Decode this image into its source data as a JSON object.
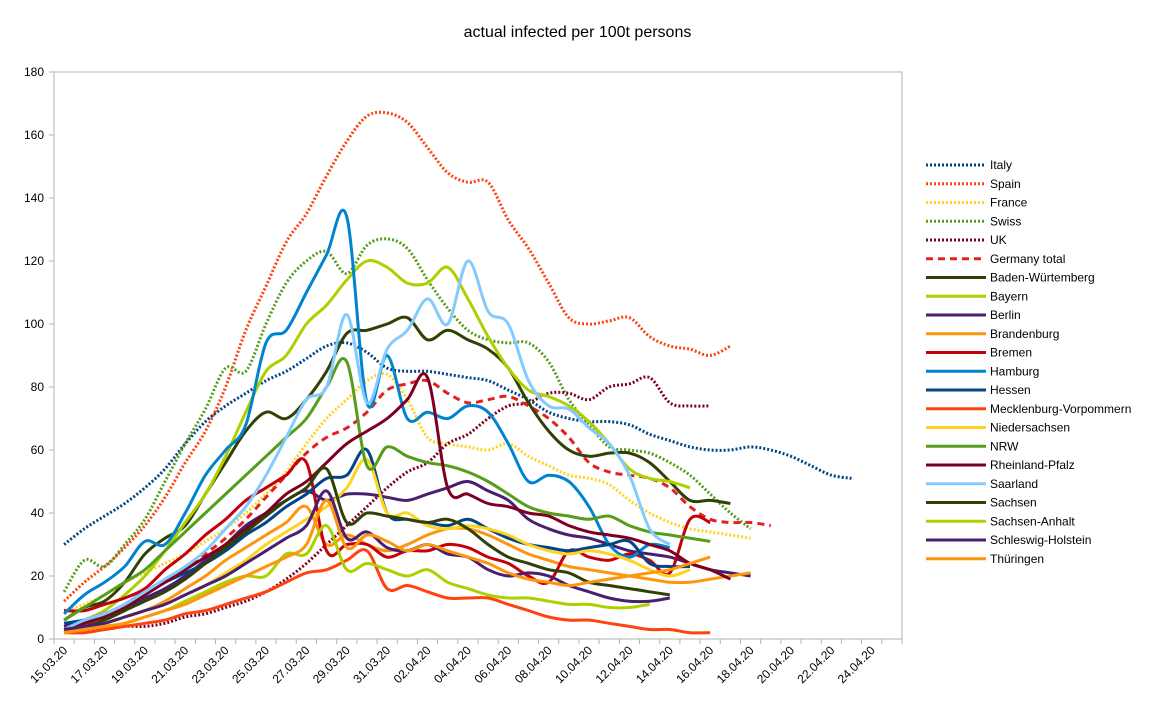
{
  "chart_data": {
    "type": "line",
    "title": "actual infected per 100t persons",
    "xlabel": "",
    "ylabel": "",
    "ylim": [
      0,
      180
    ],
    "yticks": [
      0,
      20,
      40,
      60,
      80,
      100,
      120,
      140,
      160,
      180
    ],
    "grid": false,
    "legend_position": "right",
    "x": [
      "15.03.20",
      "16.03.20",
      "17.03.20",
      "18.03.20",
      "19.03.20",
      "20.03.20",
      "21.03.20",
      "22.03.20",
      "23.03.20",
      "24.03.20",
      "25.03.20",
      "26.03.20",
      "27.03.20",
      "28.03.20",
      "29.03.20",
      "30.03.20",
      "31.03.20",
      "01.04.20",
      "02.04.20",
      "03.04.20",
      "04.04.20",
      "05.04.20",
      "06.04.20",
      "07.04.20",
      "08.04.20",
      "09.04.20",
      "10.04.20",
      "11.04.20",
      "12.04.20",
      "13.04.20",
      "14.04.20",
      "15.04.20",
      "16.04.20",
      "17.04.20",
      "18.04.20",
      "19.04.20",
      "20.04.20",
      "21.04.20",
      "22.04.20",
      "23.04.20",
      "24.04.20",
      "25.04.20"
    ],
    "xtick_labels": [
      "15.03.20",
      "17.03.20",
      "19.03.20",
      "21.03.20",
      "23.03.20",
      "25.03.20",
      "27.03.20",
      "29.03.20",
      "31.03.20",
      "02.04.20",
      "04.04.20",
      "06.04.20",
      "08.04.20",
      "10.04.20",
      "12.04.20",
      "14.04.20",
      "16.04.20",
      "18.04.20",
      "20.04.20",
      "22.04.20",
      "24.04.20"
    ],
    "series": [
      {
        "name": "Italy",
        "color": "#004586",
        "dash": "dot",
        "values": [
          30,
          35,
          39,
          43,
          48,
          54,
          62,
          69,
          74,
          78,
          82,
          85,
          89,
          93,
          94,
          91,
          86,
          85,
          85,
          84,
          83,
          82,
          79,
          76,
          72,
          70,
          69,
          69,
          68,
          65,
          63,
          61,
          60,
          60,
          61,
          60,
          58,
          55,
          52,
          51,
          null,
          null
        ]
      },
      {
        "name": "Spain",
        "color": "#ff420e",
        "dash": "dot",
        "values": [
          12,
          18,
          23,
          29,
          36,
          45,
          56,
          66,
          80,
          98,
          112,
          126,
          135,
          147,
          158,
          166,
          167,
          164,
          156,
          148,
          145,
          145,
          133,
          124,
          113,
          102,
          100,
          101,
          102,
          96,
          93,
          92,
          90,
          93,
          null,
          null,
          null,
          null,
          null,
          null,
          null,
          null
        ]
      },
      {
        "name": "France",
        "color": "#ffd320",
        "dash": "dot",
        "values": [
          9,
          11,
          14,
          18,
          21,
          24,
          27,
          31,
          35,
          40,
          46,
          53,
          62,
          70,
          76,
          82,
          84,
          76,
          64,
          62,
          61,
          60,
          62,
          58,
          55,
          52,
          51,
          49,
          44,
          40,
          37,
          35,
          34,
          33,
          32,
          null,
          null,
          null,
          null,
          null,
          null,
          null
        ]
      },
      {
        "name": "Swiss",
        "color": "#579d1c",
        "dash": "dot",
        "values": [
          15,
          25,
          23,
          30,
          38,
          50,
          62,
          73,
          86,
          85,
          100,
          113,
          120,
          123,
          116,
          125,
          127,
          124,
          114,
          105,
          98,
          95,
          94,
          94,
          88,
          76,
          68,
          61,
          60,
          59,
          56,
          52,
          46,
          40,
          35,
          null,
          null,
          null,
          null,
          null,
          null,
          null
        ]
      },
      {
        "name": "UK",
        "color": "#7e0021",
        "dash": "dot",
        "values": [
          2,
          3,
          3,
          4,
          4,
          5,
          7,
          8,
          10,
          12,
          15,
          19,
          24,
          30,
          36,
          42,
          48,
          53,
          56,
          62,
          65,
          70,
          74,
          75,
          78,
          78,
          76,
          80,
          81,
          83,
          75,
          74,
          74,
          null,
          null,
          null,
          null,
          null,
          null,
          null,
          null,
          null
        ]
      },
      {
        "name": "Germany total",
        "color": "#e32020",
        "dash": "dash",
        "values": [
          4,
          5,
          7,
          10,
          14,
          18,
          22,
          27,
          32,
          38,
          45,
          52,
          59,
          64,
          67,
          72,
          79,
          81,
          82,
          78,
          75,
          76,
          77,
          74,
          70,
          64,
          56,
          53,
          52,
          51,
          48,
          42,
          38,
          37,
          37,
          36,
          null,
          null,
          null,
          null,
          null,
          null
        ]
      },
      {
        "name": "Baden-Würtemberg",
        "color": "#314004",
        "dash": "solid",
        "values": [
          6,
          10,
          12,
          18,
          27,
          32,
          36,
          46,
          56,
          66,
          72,
          70,
          76,
          85,
          97,
          98,
          100,
          102,
          95,
          98,
          95,
          92,
          86,
          75,
          66,
          60,
          58,
          59,
          59,
          56,
          50,
          44,
          44,
          43,
          null,
          null,
          null,
          null,
          null,
          null,
          null,
          null
        ]
      },
      {
        "name": "Bayern",
        "color": "#aecf00",
        "dash": "solid",
        "values": [
          3,
          6,
          9,
          14,
          20,
          28,
          37,
          46,
          58,
          72,
          85,
          90,
          100,
          106,
          114,
          120,
          118,
          113,
          113,
          118,
          108,
          96,
          86,
          79,
          77,
          74,
          69,
          62,
          54,
          51,
          50,
          48,
          null,
          null,
          null,
          null,
          null,
          null,
          null,
          null,
          null,
          null
        ]
      },
      {
        "name": "Berlin",
        "color": "#4b1f6f",
        "dash": "solid",
        "values": [
          4,
          6,
          8,
          10,
          13,
          16,
          20,
          25,
          30,
          36,
          40,
          44,
          47,
          44,
          46,
          46,
          45,
          44,
          46,
          48,
          50,
          47,
          44,
          38,
          35,
          33,
          32,
          30,
          28,
          27,
          26,
          24,
          22,
          21,
          20,
          null,
          null,
          null,
          null,
          null,
          null,
          null
        ]
      },
      {
        "name": "Brandenburg",
        "color": "#ff950e",
        "dash": "solid",
        "values": [
          2,
          3,
          5,
          7,
          9,
          12,
          16,
          20,
          25,
          29,
          33,
          37,
          42,
          30,
          33,
          30,
          28,
          30,
          33,
          35,
          35,
          33,
          30,
          27,
          25,
          23,
          22,
          21,
          20,
          19,
          18,
          18,
          19,
          20,
          21,
          null,
          null,
          null,
          null,
          null,
          null,
          null
        ]
      },
      {
        "name": "Bremen",
        "color": "#c5000b",
        "dash": "solid",
        "values": [
          9,
          9,
          11,
          13,
          16,
          22,
          27,
          33,
          38,
          44,
          48,
          52,
          56,
          28,
          30,
          30,
          26,
          28,
          28,
          30,
          29,
          26,
          24,
          20,
          18,
          28,
          26,
          25,
          27,
          25,
          21,
          38,
          37,
          null,
          null,
          null,
          null,
          null,
          null,
          null,
          null,
          null
        ]
      },
      {
        "name": "Hamburg",
        "color": "#0084d1",
        "dash": "solid",
        "values": [
          8,
          14,
          18,
          23,
          31,
          30,
          40,
          52,
          60,
          68,
          94,
          98,
          110,
          122,
          134,
          75,
          90,
          70,
          72,
          70,
          74,
          72,
          62,
          50,
          52,
          50,
          42,
          30,
          26,
          30,
          29,
          null,
          null,
          null,
          null,
          null,
          null,
          null,
          null,
          null,
          null,
          null
        ]
      },
      {
        "name": "Hessen",
        "color": "#004586",
        "dash": "solid",
        "values": [
          5,
          6,
          8,
          11,
          15,
          18,
          21,
          24,
          28,
          33,
          37,
          42,
          46,
          51,
          52,
          60,
          40,
          38,
          37,
          36,
          38,
          35,
          32,
          30,
          29,
          28,
          29,
          30,
          31,
          24,
          23,
          23,
          null,
          null,
          null,
          null,
          null,
          null,
          null,
          null,
          null,
          null
        ]
      },
      {
        "name": "Mecklenburg-Vorpommern",
        "color": "#ff420e",
        "dash": "solid",
        "values": [
          2,
          2,
          3,
          4,
          5,
          6,
          8,
          9,
          11,
          13,
          15,
          18,
          21,
          22,
          25,
          28,
          16,
          17,
          15,
          13,
          13,
          13,
          11,
          9,
          7,
          6,
          6,
          5,
          4,
          3,
          3,
          2,
          2,
          null,
          null,
          null,
          null,
          null,
          null,
          null,
          null,
          null
        ]
      },
      {
        "name": "Niedersachsen",
        "color": "#ffd320",
        "dash": "solid",
        "values": [
          3,
          4,
          5,
          7,
          9,
          11,
          14,
          17,
          21,
          25,
          30,
          34,
          38,
          42,
          48,
          57,
          40,
          40,
          36,
          35,
          36,
          35,
          33,
          30,
          28,
          27,
          28,
          27,
          25,
          22,
          20,
          22,
          null,
          null,
          null,
          null,
          null,
          null,
          null,
          null,
          null,
          null
        ]
      },
      {
        "name": "NRW",
        "color": "#579d1c",
        "dash": "solid",
        "values": [
          6,
          10,
          14,
          18,
          22,
          28,
          34,
          40,
          46,
          52,
          58,
          64,
          70,
          80,
          88,
          55,
          61,
          58,
          56,
          55,
          53,
          50,
          46,
          42,
          40,
          39,
          38,
          39,
          36,
          34,
          33,
          32,
          31,
          null,
          null,
          null,
          null,
          null,
          null,
          null,
          null,
          null
        ]
      },
      {
        "name": "Rheinland-Pfalz",
        "color": "#7e0021",
        "dash": "solid",
        "values": [
          3,
          5,
          7,
          10,
          14,
          18,
          22,
          26,
          30,
          35,
          40,
          46,
          50,
          56,
          62,
          66,
          70,
          76,
          83,
          48,
          46,
          43,
          42,
          40,
          39,
          36,
          34,
          33,
          32,
          30,
          28,
          24,
          22,
          19,
          null,
          null,
          null,
          null,
          null,
          null,
          null,
          null
        ]
      },
      {
        "name": "Saarland",
        "color": "#83caff",
        "dash": "solid",
        "values": [
          3,
          6,
          8,
          11,
          15,
          19,
          23,
          28,
          35,
          42,
          52,
          64,
          76,
          80,
          103,
          75,
          92,
          98,
          108,
          100,
          120,
          104,
          100,
          82,
          74,
          73,
          67,
          62,
          52,
          35,
          30,
          null,
          null,
          null,
          null,
          null,
          null,
          null,
          null,
          null,
          null,
          null
        ]
      },
      {
        "name": "Sachsen",
        "color": "#314004",
        "dash": "solid",
        "values": [
          3,
          4,
          6,
          9,
          12,
          15,
          19,
          24,
          29,
          34,
          39,
          44,
          48,
          54,
          37,
          40,
          39,
          38,
          37,
          38,
          35,
          30,
          26,
          24,
          22,
          21,
          18,
          17,
          16,
          15,
          14,
          null,
          null,
          null,
          null,
          null,
          null,
          null,
          null,
          null,
          null,
          null
        ]
      },
      {
        "name": "Sachsen-Anhalt",
        "color": "#aecf00",
        "dash": "solid",
        "values": [
          2,
          3,
          4,
          5,
          7,
          9,
          12,
          15,
          18,
          20,
          20,
          27,
          27,
          36,
          22,
          24,
          22,
          20,
          22,
          18,
          16,
          14,
          13,
          13,
          12,
          11,
          11,
          10,
          10,
          11,
          null,
          null,
          null,
          null,
          null,
          null,
          null,
          null,
          null,
          null,
          null,
          null
        ]
      },
      {
        "name": "Schleswig-Holstein",
        "color": "#4b1f6f",
        "dash": "solid",
        "values": [
          3,
          4,
          5,
          7,
          9,
          11,
          14,
          17,
          20,
          24,
          28,
          32,
          36,
          47,
          32,
          34,
          29,
          28,
          30,
          27,
          26,
          22,
          20,
          21,
          20,
          17,
          15,
          13,
          12,
          12,
          13,
          null,
          null,
          null,
          null,
          null,
          null,
          null,
          null,
          null,
          null,
          null
        ]
      },
      {
        "name": "Thüringen",
        "color": "#ff950e",
        "dash": "solid",
        "values": [
          2,
          3,
          4,
          5,
          7,
          9,
          11,
          14,
          17,
          20,
          23,
          26,
          30,
          44,
          29,
          33,
          31,
          28,
          30,
          28,
          26,
          24,
          21,
          19,
          18,
          17,
          18,
          19,
          20,
          21,
          22,
          24,
          26,
          null,
          null,
          null,
          null,
          null,
          null,
          null,
          null,
          null
        ]
      }
    ]
  }
}
